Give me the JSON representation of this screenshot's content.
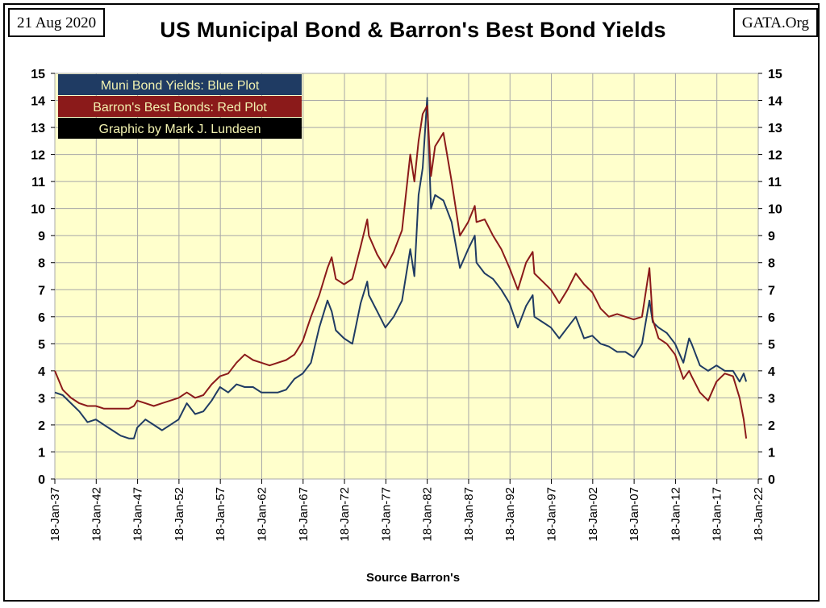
{
  "header": {
    "date": "21 Aug 2020",
    "site": "GATA.Org",
    "title": "US Municipal Bond & Barron's Best Bond Yields"
  },
  "footer": {
    "source": "Source Barron's"
  },
  "chart_data": {
    "type": "line",
    "title": "US Municipal Bond & Barron's Best Bond Yields",
    "xlabel": "Source Barron's",
    "ylabel": "",
    "xlim": [
      1937.05,
      2022.05
    ],
    "ylim": [
      0,
      15
    ],
    "y_ticks": [
      0,
      1,
      2,
      3,
      4,
      5,
      6,
      7,
      8,
      9,
      10,
      11,
      12,
      13,
      14,
      15
    ],
    "x_ticks": [
      "18-Jan-37",
      "18-Jan-42",
      "18-Jan-47",
      "18-Jan-52",
      "18-Jan-57",
      "18-Jan-62",
      "18-Jan-67",
      "18-Jan-72",
      "18-Jan-77",
      "18-Jan-82",
      "18-Jan-87",
      "18-Jan-92",
      "18-Jan-97",
      "18-Jan-02",
      "18-Jan-07",
      "18-Jan-12",
      "18-Jan-17",
      "18-Jan-22"
    ],
    "grid": true,
    "legend": [
      {
        "label": "Muni Bond Yields: Blue Plot",
        "bg": "#1f3b63",
        "fg": "#f2f2b0"
      },
      {
        "label": "Barron's Best Bonds: Red Plot",
        "bg": "#8b1a1a",
        "fg": "#f2f2b0"
      },
      {
        "label": "Graphic by Mark J. Lundeen",
        "bg": "#000000",
        "fg": "#f2f2b0"
      }
    ],
    "legend_position": "top-left",
    "plot_background": "#ffffcc",
    "series": [
      {
        "color": "#1f3b63",
        "x": [
          1937.05,
          1938,
          1939,
          1940,
          1941,
          1942,
          1943,
          1944,
          1945,
          1946,
          1946.6,
          1947,
          1948,
          1949,
          1950,
          1951,
          1952,
          1953,
          1954,
          1955,
          1956,
          1957,
          1958,
          1959,
          1960,
          1961,
          1962,
          1963,
          1964,
          1965,
          1966,
          1967,
          1968,
          1969,
          1970,
          1970.5,
          1971,
          1972,
          1973,
          1974,
          1974.8,
          1975,
          1976,
          1977,
          1978,
          1979,
          1980,
          1980.5,
          1981,
          1981.5,
          1982.05,
          1982.5,
          1983,
          1984,
          1985,
          1986,
          1987,
          1987.8,
          1988,
          1989,
          1990,
          1991,
          1992,
          1993,
          1994,
          1994.8,
          1995,
          1996,
          1997,
          1998,
          1999,
          2000,
          2001,
          2002,
          2003,
          2004,
          2005,
          2006,
          2007,
          2008,
          2008.9,
          2009.3,
          2010,
          2011,
          2012,
          2013,
          2013.7,
          2014,
          2015,
          2016,
          2017,
          2018,
          2019,
          2019.8,
          2020.3,
          2020.6
        ],
        "y": [
          3.2,
          3.1,
          2.8,
          2.5,
          2.1,
          2.2,
          2.0,
          1.8,
          1.6,
          1.5,
          1.5,
          1.9,
          2.2,
          2.0,
          1.8,
          2.0,
          2.2,
          2.8,
          2.4,
          2.5,
          2.9,
          3.4,
          3.2,
          3.5,
          3.4,
          3.4,
          3.2,
          3.2,
          3.2,
          3.3,
          3.7,
          3.9,
          4.3,
          5.6,
          6.6,
          6.2,
          5.5,
          5.2,
          5.0,
          6.5,
          7.3,
          6.8,
          6.2,
          5.6,
          6.0,
          6.6,
          8.5,
          7.5,
          10.5,
          11.5,
          14.1,
          10.0,
          10.5,
          10.3,
          9.5,
          7.8,
          8.5,
          9.0,
          8.0,
          7.6,
          7.4,
          7.0,
          6.5,
          5.6,
          6.4,
          6.8,
          6.0,
          5.8,
          5.6,
          5.2,
          5.6,
          6.0,
          5.2,
          5.3,
          5.0,
          4.9,
          4.7,
          4.7,
          4.5,
          5.0,
          6.6,
          5.8,
          5.6,
          5.4,
          5.0,
          4.3,
          5.2,
          5.0,
          4.2,
          4.0,
          4.2,
          4.0,
          4.0,
          3.6,
          3.9,
          3.6
        ]
      },
      {
        "color": "#8b1a1a",
        "x": [
          1937.05,
          1938,
          1939,
          1940,
          1941,
          1942,
          1943,
          1944,
          1945,
          1946,
          1946.6,
          1947,
          1948,
          1949,
          1950,
          1951,
          1952,
          1953,
          1954,
          1955,
          1956,
          1957,
          1958,
          1959,
          1960,
          1961,
          1962,
          1963,
          1964,
          1965,
          1966,
          1967,
          1968,
          1969,
          1970,
          1970.5,
          1971,
          1972,
          1973,
          1974,
          1974.8,
          1975,
          1976,
          1977,
          1978,
          1979,
          1980,
          1980.5,
          1981,
          1981.5,
          1982.05,
          1982.5,
          1983,
          1984,
          1985,
          1986,
          1987,
          1987.8,
          1988,
          1989,
          1990,
          1991,
          1992,
          1993,
          1994,
          1994.8,
          1995,
          1996,
          1997,
          1998,
          1999,
          2000,
          2001,
          2002,
          2003,
          2004,
          2005,
          2006,
          2007,
          2008,
          2008.9,
          2009.3,
          2010,
          2011,
          2012,
          2013,
          2013.7,
          2014,
          2015,
          2016,
          2017,
          2018,
          2019,
          2019.8,
          2020.3,
          2020.6
        ],
        "y": [
          4.0,
          3.3,
          3.0,
          2.8,
          2.7,
          2.7,
          2.6,
          2.6,
          2.6,
          2.6,
          2.7,
          2.9,
          2.8,
          2.7,
          2.8,
          2.9,
          3.0,
          3.2,
          3.0,
          3.1,
          3.5,
          3.8,
          3.9,
          4.3,
          4.6,
          4.4,
          4.3,
          4.2,
          4.3,
          4.4,
          4.6,
          5.1,
          6.0,
          6.8,
          7.8,
          8.2,
          7.4,
          7.2,
          7.4,
          8.6,
          9.6,
          9.0,
          8.3,
          7.8,
          8.4,
          9.2,
          12.0,
          11.0,
          12.5,
          13.5,
          13.8,
          11.2,
          12.3,
          12.8,
          11.0,
          9.0,
          9.5,
          10.1,
          9.5,
          9.6,
          9.0,
          8.5,
          7.8,
          7.0,
          8.0,
          8.4,
          7.6,
          7.3,
          7.0,
          6.5,
          7.0,
          7.6,
          7.2,
          6.9,
          6.3,
          6.0,
          6.1,
          6.0,
          5.9,
          6.0,
          7.8,
          5.9,
          5.2,
          5.0,
          4.6,
          3.7,
          4.0,
          3.8,
          3.2,
          2.9,
          3.6,
          3.9,
          3.8,
          3.0,
          2.2,
          1.5
        ]
      }
    ]
  }
}
